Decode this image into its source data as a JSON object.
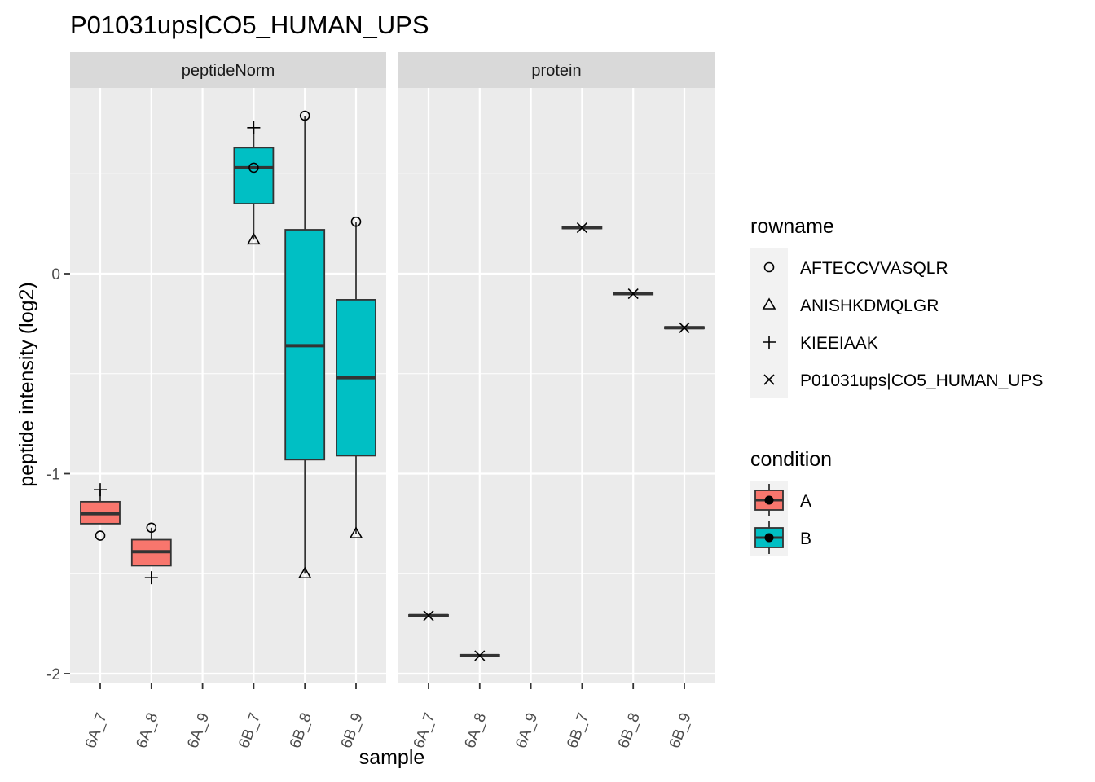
{
  "chart_data": {
    "type": "boxplot",
    "title": "P01031ups|CO5_HUMAN_UPS",
    "xlabel": "sample",
    "ylabel": "peptide intensity (log2)",
    "ylim": [
      -2.05,
      0.93
    ],
    "yticks": [
      0,
      -1,
      -2
    ],
    "ytick_labels": [
      "0",
      "-1",
      "-2"
    ],
    "categories": [
      "6A_7",
      "6A_8",
      "6A_9",
      "6B_7",
      "6B_8",
      "6B_9"
    ],
    "grid": true,
    "panels": [
      {
        "name": "peptideNorm",
        "boxes": [
          {
            "sample": "6A_7",
            "condition": "A",
            "lower": -1.25,
            "q1": -1.25,
            "median": -1.2,
            "q3": -1.14,
            "upper": -1.08
          },
          {
            "sample": "6A_8",
            "condition": "A",
            "lower": -1.46,
            "q1": -1.46,
            "median": -1.39,
            "q3": -1.33,
            "upper": -1.27
          },
          {
            "sample": "6B_7",
            "condition": "B",
            "lower": 0.17,
            "q1": 0.35,
            "median": 0.53,
            "q3": 0.63,
            "upper": 0.73
          },
          {
            "sample": "6B_8",
            "condition": "B",
            "lower": -1.5,
            "q1": -0.93,
            "median": -0.36,
            "q3": 0.22,
            "upper": 0.79
          },
          {
            "sample": "6B_9",
            "condition": "B",
            "lower": -1.3,
            "q1": -0.91,
            "median": -0.52,
            "q3": -0.13,
            "upper": 0.26
          }
        ],
        "points": [
          {
            "sample": "6A_7",
            "rowname": "AFTECCVVASQLR",
            "y": -1.31
          },
          {
            "sample": "6A_7",
            "rowname": "KIEEIAAK",
            "y": -1.08
          },
          {
            "sample": "6A_8",
            "rowname": "AFTECCVVASQLR",
            "y": -1.27
          },
          {
            "sample": "6A_8",
            "rowname": "KIEEIAAK",
            "y": -1.52
          },
          {
            "sample": "6B_7",
            "rowname": "KIEEIAAK",
            "y": 0.73
          },
          {
            "sample": "6B_7",
            "rowname": "AFTECCVVASQLR",
            "y": 0.53
          },
          {
            "sample": "6B_7",
            "rowname": "ANISHKDMQLGR",
            "y": 0.17
          },
          {
            "sample": "6B_8",
            "rowname": "AFTECCVVASQLR",
            "y": 0.79
          },
          {
            "sample": "6B_8",
            "rowname": "ANISHKDMQLGR",
            "y": -1.5
          },
          {
            "sample": "6B_9",
            "rowname": "AFTECCVVASQLR",
            "y": 0.26
          },
          {
            "sample": "6B_9",
            "rowname": "ANISHKDMQLGR",
            "y": -1.3
          }
        ]
      },
      {
        "name": "protein",
        "boxes": [
          {
            "sample": "6A_7",
            "condition": "A",
            "median": -1.71
          },
          {
            "sample": "6A_8",
            "condition": "A",
            "median": -1.91
          },
          {
            "sample": "6B_7",
            "condition": "B",
            "median": 0.23
          },
          {
            "sample": "6B_8",
            "condition": "B",
            "median": -0.1
          },
          {
            "sample": "6B_9",
            "condition": "B",
            "median": -0.27
          }
        ],
        "points": [
          {
            "sample": "6A_7",
            "rowname": "P01031ups|CO5_HUMAN_UPS",
            "y": -1.71
          },
          {
            "sample": "6A_8",
            "rowname": "P01031ups|CO5_HUMAN_UPS",
            "y": -1.91
          },
          {
            "sample": "6B_7",
            "rowname": "P01031ups|CO5_HUMAN_UPS",
            "y": 0.23
          },
          {
            "sample": "6B_8",
            "rowname": "P01031ups|CO5_HUMAN_UPS",
            "y": -0.1
          },
          {
            "sample": "6B_9",
            "rowname": "P01031ups|CO5_HUMAN_UPS",
            "y": -0.27
          }
        ]
      }
    ],
    "legend": {
      "placement": "right",
      "rowname": {
        "title": "rowname",
        "items": [
          {
            "label": "AFTECCVVASQLR",
            "shape": "circle"
          },
          {
            "label": "ANISHKDMQLGR",
            "shape": "triangle"
          },
          {
            "label": "KIEEIAAK",
            "shape": "plus"
          },
          {
            "label": "P01031ups|CO5_HUMAN_UPS",
            "shape": "cross"
          }
        ]
      },
      "condition": {
        "title": "condition",
        "items": [
          {
            "label": "A",
            "color": "#F8766D"
          },
          {
            "label": "B",
            "color": "#00BFC4"
          }
        ]
      }
    },
    "colors": {
      "A": "#F8766D",
      "B": "#00BFC4",
      "panel_bg": "#EBEBEB",
      "strip_bg": "#D9D9D9",
      "grid": "#FFFFFF"
    }
  }
}
